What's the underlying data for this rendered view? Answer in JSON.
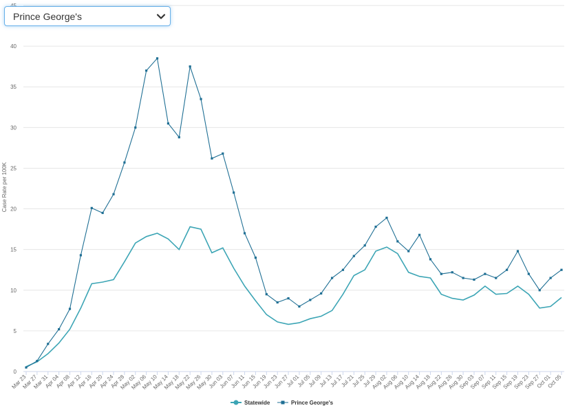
{
  "selector": {
    "value": "Prince George's"
  },
  "chart_data": {
    "type": "line",
    "ylabel": "Case Rate per 100K",
    "ylim": [
      0,
      45
    ],
    "yticks": [
      0,
      5,
      10,
      15,
      20,
      25,
      30,
      35,
      40,
      45
    ],
    "grid": true,
    "legend_position": "bottom-center",
    "x": [
      "Mar 23",
      "Mar 27",
      "Mar 31",
      "Apr 04",
      "Apr 08",
      "Apr 12",
      "Apr 16",
      "Apr 20",
      "Apr 24",
      "Apr 28",
      "May 02",
      "May 06",
      "May 10",
      "May 14",
      "May 18",
      "May 22",
      "May 26",
      "May 30",
      "Jun 03",
      "Jun 07",
      "Jun 11",
      "Jun 15",
      "Jun 19",
      "Jun 23",
      "Jun 27",
      "Jul 01",
      "Jul 05",
      "Jul 09",
      "Jul 13",
      "Jul 17",
      "Jul 21",
      "Jul 25",
      "Jul 29",
      "Aug 02",
      "Aug 06",
      "Aug 10",
      "Aug 14",
      "Aug 18",
      "Aug 22",
      "Aug 26",
      "Aug 30",
      "Sep 03",
      "Sep 07",
      "Sep 11",
      "Sep 15",
      "Sep 19",
      "Sep 23",
      "Sep 27",
      "Oct 01",
      "Oct 05"
    ],
    "series": [
      {
        "name": "Statewide",
        "color": "#3ca5b5",
        "marker": "circle",
        "values": [
          0.6,
          1.2,
          2.2,
          3.5,
          5.2,
          7.8,
          10.8,
          11.0,
          11.3,
          13.5,
          15.8,
          16.6,
          17.0,
          16.3,
          15.0,
          17.8,
          17.5,
          14.6,
          15.2,
          12.7,
          10.5,
          8.7,
          7.0,
          6.1,
          5.8,
          6.0,
          6.5,
          6.8,
          7.5,
          9.5,
          11.8,
          12.5,
          14.8,
          15.3,
          14.5,
          12.2,
          11.7,
          11.5,
          9.5,
          9.0,
          8.8,
          9.4,
          10.5,
          9.5,
          9.6,
          10.5,
          9.5,
          7.8,
          8.0,
          9.1
        ]
      },
      {
        "name": "Prince George's",
        "color": "#1f6f94",
        "marker": "square",
        "values": [
          0.5,
          1.3,
          3.4,
          5.2,
          7.7,
          14.3,
          20.1,
          19.5,
          21.8,
          25.7,
          30.0,
          37.0,
          38.5,
          30.5,
          28.8,
          37.5,
          33.5,
          26.2,
          26.8,
          22.0,
          17.0,
          14.0,
          9.5,
          8.5,
          9.0,
          8.0,
          8.8,
          9.6,
          11.5,
          12.5,
          14.2,
          15.5,
          17.8,
          18.9,
          16.0,
          14.8,
          16.8,
          13.8,
          12.0,
          12.2,
          11.5,
          11.3,
          12.0,
          11.5,
          12.5,
          14.8,
          12.0,
          10.0,
          11.5,
          12.5
        ]
      }
    ]
  }
}
